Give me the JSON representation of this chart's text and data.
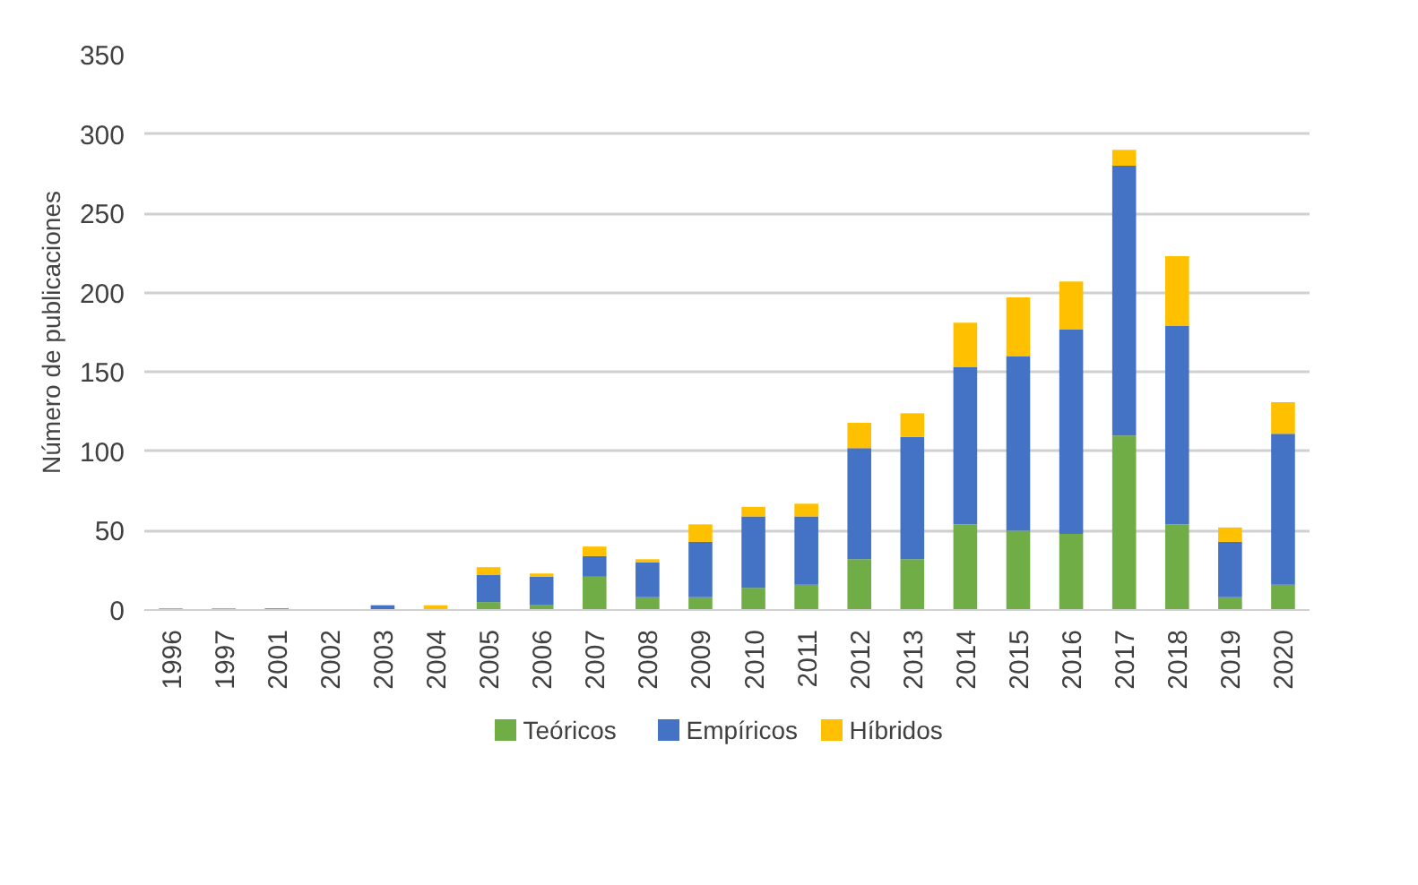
{
  "chart_data": {
    "type": "bar",
    "stacked": true,
    "ylabel": "Número de publicaciones",
    "categories": [
      "1996",
      "1997",
      "2001",
      "2002",
      "2003",
      "2004",
      "2005",
      "2006",
      "2007",
      "2008",
      "2009",
      "2010",
      "2011",
      "2012",
      "2013",
      "2014",
      "2015",
      "2016",
      "2017",
      "2018",
      "2019",
      "2020"
    ],
    "series": [
      {
        "name": "Teóricos",
        "color": "#70ad47",
        "values": [
          1,
          1,
          0,
          0,
          0,
          0,
          5,
          3,
          21,
          8,
          8,
          14,
          16,
          32,
          32,
          54,
          50,
          48,
          110,
          54,
          8,
          16
        ]
      },
      {
        "name": "Empíricos",
        "color": "#4472c4",
        "values": [
          0,
          0,
          1,
          0,
          3,
          0,
          17,
          18,
          13,
          22,
          35,
          45,
          43,
          70,
          77,
          99,
          110,
          129,
          170,
          125,
          35,
          95
        ]
      },
      {
        "name": "Híbridos",
        "color": "#ffc000",
        "values": [
          0,
          0,
          0,
          0,
          0,
          3,
          5,
          2,
          6,
          2,
          11,
          6,
          8,
          16,
          15,
          28,
          37,
          30,
          10,
          44,
          9,
          20
        ]
      }
    ],
    "ylim": [
      0,
      350
    ],
    "yticks": [
      0,
      50,
      100,
      150,
      200,
      250,
      300,
      350
    ],
    "grid": "y",
    "legend": "bottom"
  }
}
